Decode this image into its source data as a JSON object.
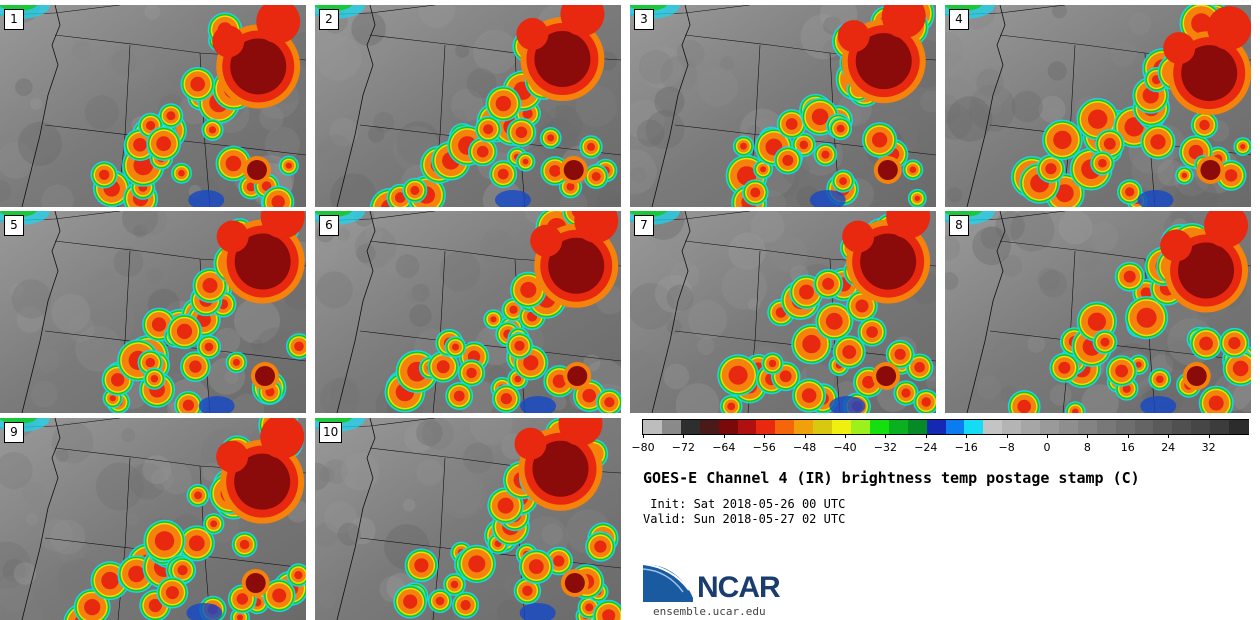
{
  "panels": [
    {
      "label": "1"
    },
    {
      "label": "2"
    },
    {
      "label": "3"
    },
    {
      "label": "4"
    },
    {
      "label": "5"
    },
    {
      "label": "6"
    },
    {
      "label": "7"
    },
    {
      "label": "8"
    },
    {
      "label": "9"
    },
    {
      "label": "10"
    }
  ],
  "colorbar": {
    "colors": [
      "#bdbdbd",
      "#8a8a8a",
      "#2e2e2e",
      "#4a1a1a",
      "#7a0a0a",
      "#b01010",
      "#e8280f",
      "#f5650a",
      "#f0a00a",
      "#d8c810",
      "#f0f010",
      "#9cf01c",
      "#14e010",
      "#0ab020",
      "#068a28",
      "#1428b4",
      "#0a7cf0",
      "#14dcf5",
      "#c4c4c4",
      "#b4b4b4",
      "#a6a6a6",
      "#9a9a9a",
      "#8e8e8e",
      "#838383",
      "#787878",
      "#6e6e6e",
      "#646464",
      "#5a5a5a",
      "#505050",
      "#464646",
      "#3c3c3c",
      "#2c2c2c"
    ],
    "ticks": [
      "−80",
      "−72",
      "−64",
      "−56",
      "−48",
      "−40",
      "−32",
      "−24",
      "−16",
      "−8",
      "0",
      "8",
      "16",
      "24",
      "32"
    ]
  },
  "title": "GOES-E Channel 4 (IR) brightness temp postage stamp (C)",
  "init_line": " Init: Sat 2018-05-26 00 UTC",
  "valid_line": "Valid: Sun 2018-05-27 02 UTC",
  "logo_text": "NCAR",
  "logo_url": "ensemble.ucar.edu",
  "palette": {
    "cold_top": "#8b0a0a",
    "red": "#e8280f",
    "orange": "#f5820a",
    "yellow": "#e8e010",
    "green": "#14c814",
    "cyan": "#14dcf5",
    "blue": "#1448c8",
    "land": "#7a7a7a"
  }
}
